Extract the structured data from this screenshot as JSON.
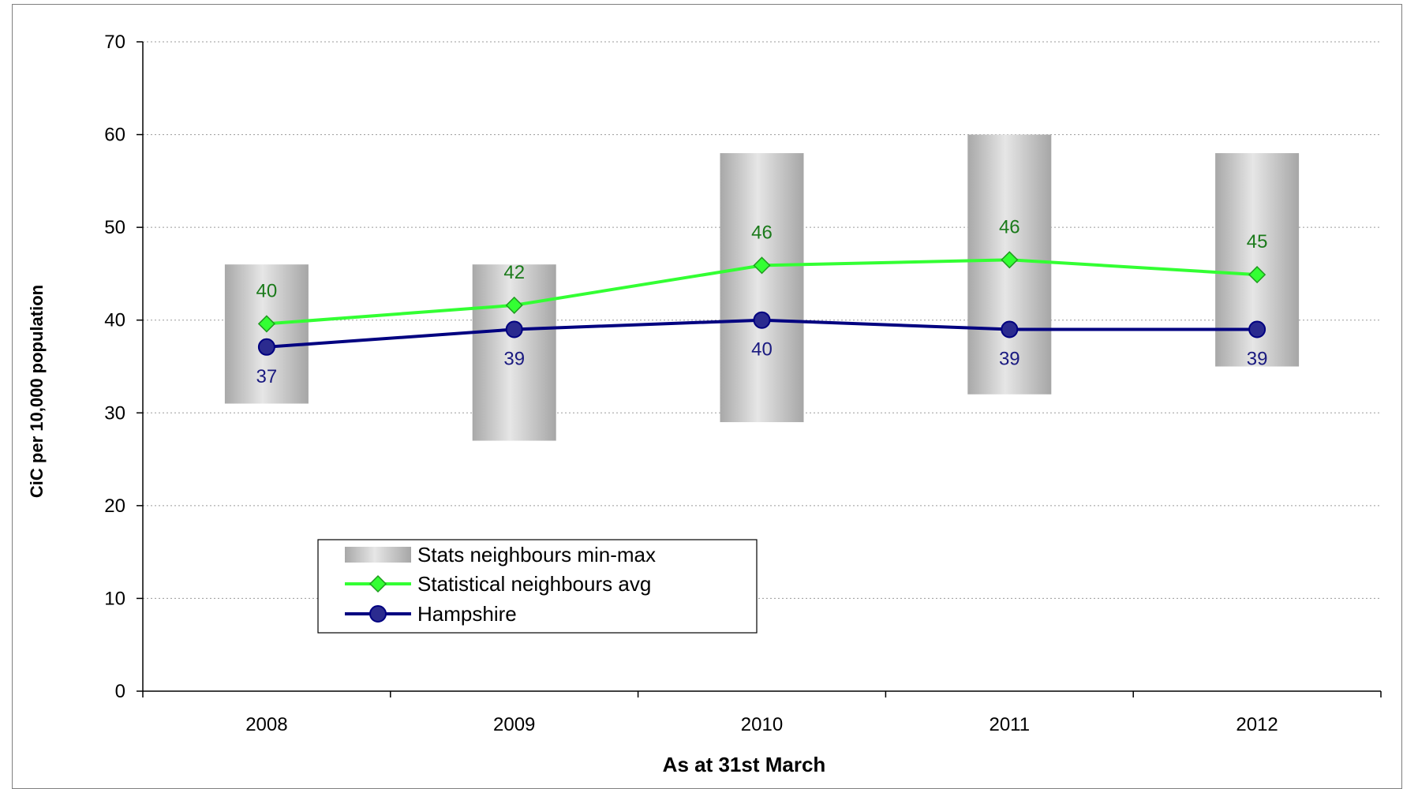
{
  "chart_data": {
    "type": "line",
    "title": "",
    "xlabel": "As at 31st March",
    "ylabel": "CiC per 10,000 population",
    "categories": [
      "2008",
      "2009",
      "2010",
      "2011",
      "2012"
    ],
    "ylim": [
      0,
      70
    ],
    "yticks": [
      0,
      10,
      20,
      30,
      40,
      50,
      60,
      70
    ],
    "grid": true,
    "legend_position": "bottom-left",
    "series": [
      {
        "name": "Stats neighbours min-max",
        "kind": "range-bar",
        "color": "#c4c4c4",
        "min": [
          31,
          27,
          29,
          32,
          35
        ],
        "max": [
          46,
          46,
          58,
          60,
          58
        ]
      },
      {
        "name": "Statistical neighbours avg",
        "kind": "line",
        "marker": "diamond",
        "color": "#33ff33",
        "label_color": "#1a7a1a",
        "values": [
          39.6,
          41.6,
          45.9,
          46.5,
          44.9
        ],
        "labels": [
          "40",
          "42",
          "46",
          "46",
          "45"
        ]
      },
      {
        "name": "Hampshire",
        "kind": "line",
        "marker": "circle",
        "color": "#000080",
        "label_color": "#1a1a80",
        "values": [
          37.1,
          39,
          40,
          39,
          39
        ],
        "labels": [
          "37",
          "39",
          "40",
          "39",
          "39"
        ]
      }
    ]
  }
}
